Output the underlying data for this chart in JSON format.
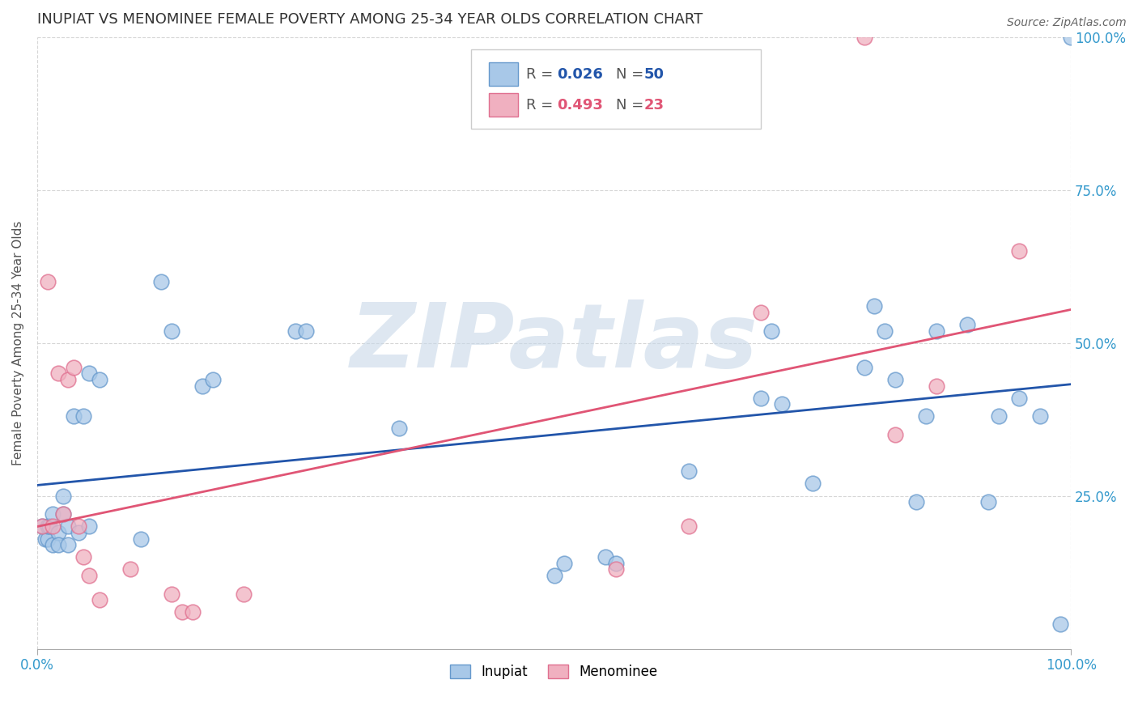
{
  "title": "INUPIAT VS MENOMINEE FEMALE POVERTY AMONG 25-34 YEAR OLDS CORRELATION CHART",
  "source": "Source: ZipAtlas.com",
  "ylabel": "Female Poverty Among 25-34 Year Olds",
  "xlim": [
    0,
    1
  ],
  "ylim": [
    0,
    1
  ],
  "xtick_positions": [
    0.0,
    1.0
  ],
  "xtick_labels": [
    "0.0%",
    "100.0%"
  ],
  "ytick_positions": [
    0.0,
    0.25,
    0.5,
    0.75,
    1.0
  ],
  "ytick_labels_left": [
    "",
    "",
    "",
    "",
    ""
  ],
  "ytick_labels_right": [
    "",
    "25.0%",
    "50.0%",
    "75.0%",
    "100.0%"
  ],
  "inupiat_color": "#a8c8e8",
  "menominee_color": "#f0b0c0",
  "inupiat_edge": "#6699cc",
  "menominee_edge": "#e07090",
  "blue_line_color": "#2255aa",
  "pink_line_color": "#e05575",
  "R_inupiat": 0.026,
  "N_inupiat": 50,
  "R_menominee": 0.493,
  "N_menominee": 23,
  "watermark": "ZIPatlas",
  "watermark_color": "#c8d8e8",
  "grid_color": "#cccccc",
  "inupiat_x": [
    0.005,
    0.008,
    0.01,
    0.01,
    0.012,
    0.015,
    0.015,
    0.02,
    0.02,
    0.025,
    0.025,
    0.03,
    0.03,
    0.035,
    0.04,
    0.045,
    0.05,
    0.05,
    0.06,
    0.1,
    0.12,
    0.13,
    0.16,
    0.17,
    0.25,
    0.26,
    0.35,
    0.5,
    0.51,
    0.55,
    0.56,
    0.63,
    0.7,
    0.71,
    0.72,
    0.75,
    0.8,
    0.81,
    0.82,
    0.83,
    0.85,
    0.86,
    0.87,
    0.9,
    0.92,
    0.93,
    0.95,
    0.97,
    0.99,
    1.0
  ],
  "inupiat_y": [
    0.2,
    0.18,
    0.18,
    0.2,
    0.2,
    0.22,
    0.17,
    0.19,
    0.17,
    0.22,
    0.25,
    0.17,
    0.2,
    0.38,
    0.19,
    0.38,
    0.45,
    0.2,
    0.44,
    0.18,
    0.6,
    0.52,
    0.43,
    0.44,
    0.52,
    0.52,
    0.36,
    0.12,
    0.14,
    0.15,
    0.14,
    0.29,
    0.41,
    0.52,
    0.4,
    0.27,
    0.46,
    0.56,
    0.52,
    0.44,
    0.24,
    0.38,
    0.52,
    0.53,
    0.24,
    0.38,
    0.41,
    0.38,
    0.04,
    1.0
  ],
  "menominee_x": [
    0.005,
    0.01,
    0.015,
    0.02,
    0.025,
    0.03,
    0.035,
    0.04,
    0.045,
    0.05,
    0.06,
    0.09,
    0.13,
    0.14,
    0.15,
    0.2,
    0.56,
    0.63,
    0.7,
    0.8,
    0.83,
    0.87,
    0.95
  ],
  "menominee_y": [
    0.2,
    0.6,
    0.2,
    0.45,
    0.22,
    0.44,
    0.46,
    0.2,
    0.15,
    0.12,
    0.08,
    0.13,
    0.09,
    0.06,
    0.06,
    0.09,
    0.13,
    0.2,
    0.55,
    1.0,
    0.35,
    0.43,
    0.65
  ]
}
